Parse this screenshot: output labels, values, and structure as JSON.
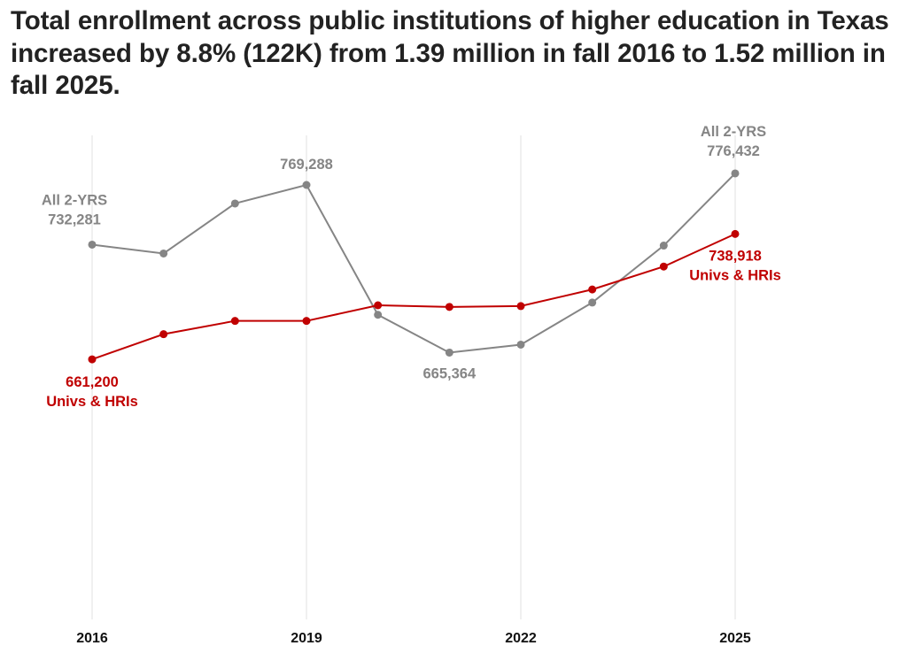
{
  "chart_data": {
    "type": "line",
    "title": "Total enrollment across public institutions of higher education in Texas increased by 8.8% (122K) from 1.39 million in fall 2016 to 1.52 million in fall 2025.",
    "x": [
      2016,
      2017,
      2018,
      2019,
      2020,
      2021,
      2022,
      2023,
      2024,
      2025
    ],
    "xticks": [
      "2016",
      "2019",
      "2022",
      "2025"
    ],
    "xlabel": "",
    "ylabel": "",
    "ylim": [
      500000,
      800000
    ],
    "grid": "vertical at x ticks",
    "legend": "none (direct labels)",
    "series": [
      {
        "name": "All 2-YRS",
        "color": "#858585",
        "values": [
          732281,
          726800,
          757800,
          769288,
          688800,
          665364,
          670300,
          696400,
          731700,
          776432
        ]
      },
      {
        "name": "Univs & HRIs",
        "color": "#c00000",
        "values": [
          661200,
          676800,
          685000,
          685000,
          694700,
          693700,
          694200,
          704500,
          718700,
          738918
        ]
      }
    ],
    "annotations": [
      {
        "series": 0,
        "year": 2016,
        "lines": [
          "All 2-YRS",
          "732,281"
        ]
      },
      {
        "series": 0,
        "year": 2019,
        "lines": [
          "769,288"
        ]
      },
      {
        "series": 0,
        "year": 2021,
        "lines": [
          "665,364"
        ]
      },
      {
        "series": 0,
        "year": 2025,
        "lines": [
          "All 2-YRS",
          "776,432"
        ]
      },
      {
        "series": 1,
        "year": 2016,
        "lines": [
          "661,200",
          "Univs & HRIs"
        ]
      },
      {
        "series": 1,
        "year": 2025,
        "lines": [
          "738,918",
          "Univs & HRIs"
        ]
      }
    ]
  }
}
